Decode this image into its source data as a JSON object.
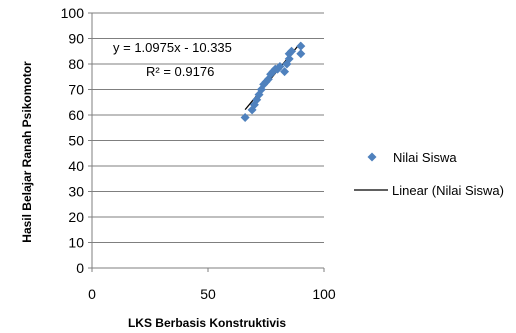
{
  "chart_data": {
    "type": "scatter",
    "xlabel": "LKS Berbasis  Konstruktivis",
    "ylabel": "Hasil  Belajar  Ranah  Psikomotor",
    "xlim": [
      0,
      100
    ],
    "ylim": [
      0,
      100
    ],
    "x_ticks": [
      0,
      50,
      100
    ],
    "y_ticks": [
      0,
      10,
      20,
      30,
      40,
      50,
      60,
      70,
      80,
      90,
      100
    ],
    "grid": "horizontal",
    "legend_position": "right",
    "series": [
      {
        "name": "Nilai Siswa",
        "marker": "diamond",
        "color": "#4f81bd",
        "points": [
          [
            66,
            59
          ],
          [
            69,
            62
          ],
          [
            70,
            64
          ],
          [
            71,
            66
          ],
          [
            72,
            68
          ],
          [
            73,
            70
          ],
          [
            74,
            72
          ],
          [
            75,
            73
          ],
          [
            76,
            74
          ],
          [
            77,
            76
          ],
          [
            78,
            77
          ],
          [
            79,
            78
          ],
          [
            80,
            78
          ],
          [
            81,
            79
          ],
          [
            83,
            77
          ],
          [
            84,
            80
          ],
          [
            85,
            82
          ],
          [
            85,
            84
          ],
          [
            86,
            85
          ],
          [
            90,
            84
          ],
          [
            90,
            87
          ]
        ]
      },
      {
        "name": "Linear (Nilai Siswa)",
        "type": "trendline",
        "color": "#000000",
        "slope": 1.0975,
        "intercept": -10.335,
        "x_range": [
          66,
          90
        ]
      }
    ],
    "annotations": {
      "equation": "y = 1.0975x - 10.335",
      "r_squared": "R² = 0.9176"
    }
  }
}
